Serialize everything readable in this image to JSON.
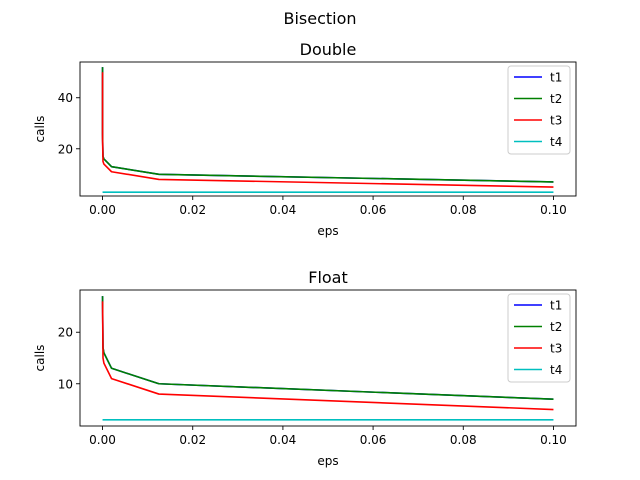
{
  "figure": {
    "suptitle": "Bisection"
  },
  "chart_data": [
    {
      "type": "line",
      "title": "Double",
      "xlabel": "eps",
      "ylabel": "calls",
      "xlim": [
        -0.005,
        0.105
      ],
      "ylim": [
        1.5,
        54
      ],
      "xticks": [
        0.0,
        0.02,
        0.04,
        0.06,
        0.08,
        0.1
      ],
      "xtick_labels": [
        "0.00",
        "0.02",
        "0.04",
        "0.06",
        "0.08",
        "0.10"
      ],
      "yticks": [
        20,
        40
      ],
      "ytick_labels": [
        "20",
        "40"
      ],
      "legend": "top-right",
      "series": [
        {
          "name": "t1",
          "color": "#0000ff",
          "x": [
            1e-09,
            1e-06,
            0.0001,
            0.0003,
            0.002,
            0.0125,
            0.1
          ],
          "y": [
            52,
            26,
            17,
            16,
            13,
            10,
            7
          ]
        },
        {
          "name": "t2",
          "color": "#008000",
          "x": [
            1e-09,
            1e-06,
            0.0001,
            0.0003,
            0.002,
            0.0125,
            0.1
          ],
          "y": [
            52,
            26,
            17,
            16,
            13,
            10,
            7
          ]
        },
        {
          "name": "t3",
          "color": "#ff0000",
          "x": [
            1e-09,
            1e-06,
            0.0001,
            0.0003,
            0.002,
            0.0125,
            0.1
          ],
          "y": [
            50,
            24,
            15,
            14,
            11,
            8,
            5
          ]
        },
        {
          "name": "t4",
          "color": "#00bfbf",
          "x": [
            1e-09,
            0.1
          ],
          "y": [
            3,
            3
          ]
        }
      ]
    },
    {
      "type": "line",
      "title": "Float",
      "xlabel": "eps",
      "ylabel": "calls",
      "xlim": [
        -0.005,
        0.105
      ],
      "ylim": [
        1.8,
        28.2
      ],
      "xticks": [
        0.0,
        0.02,
        0.04,
        0.06,
        0.08,
        0.1
      ],
      "xtick_labels": [
        "0.00",
        "0.02",
        "0.04",
        "0.06",
        "0.08",
        "0.10"
      ],
      "yticks": [
        10,
        20
      ],
      "ytick_labels": [
        "10",
        "20"
      ],
      "legend": "top-right",
      "series": [
        {
          "name": "t1",
          "color": "#0000ff",
          "x": [
            1e-09,
            0.0001,
            0.0003,
            0.002,
            0.0125,
            0.1
          ],
          "y": [
            27,
            17,
            16,
            13,
            10,
            7
          ]
        },
        {
          "name": "t2",
          "color": "#008000",
          "x": [
            1e-09,
            0.0001,
            0.0003,
            0.002,
            0.0125,
            0.1
          ],
          "y": [
            27,
            17,
            16,
            13,
            10,
            7
          ]
        },
        {
          "name": "t3",
          "color": "#ff0000",
          "x": [
            1e-09,
            0.0001,
            0.0003,
            0.002,
            0.0125,
            0.1
          ],
          "y": [
            26,
            15,
            14,
            11,
            8,
            5
          ]
        },
        {
          "name": "t4",
          "color": "#00bfbf",
          "x": [
            1e-09,
            0.1
          ],
          "y": [
            3,
            3
          ]
        }
      ]
    }
  ]
}
